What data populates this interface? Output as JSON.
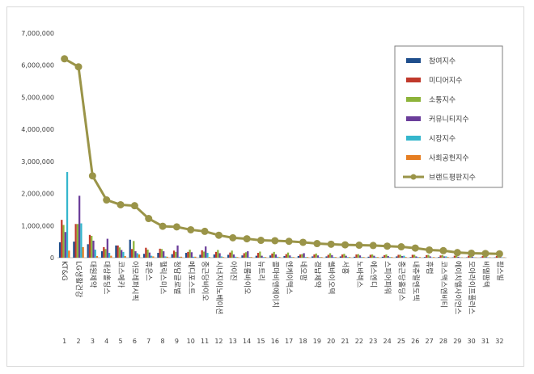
{
  "chart_data": {
    "type": "bar",
    "title": "",
    "xlabel": "",
    "ylabel": "",
    "ylim": [
      0,
      7000000
    ],
    "y_ticks": [
      "0",
      "1,000,000",
      "2,000,000",
      "3,000,000",
      "4,000,000",
      "5,000,000",
      "6,000,000",
      "7,000,000"
    ],
    "grid": false,
    "legend_position": "top-right",
    "x_numbers": [
      "1",
      "2",
      "3",
      "4",
      "5",
      "6",
      "7",
      "8",
      "9",
      "10",
      "11",
      "12",
      "13",
      "14",
      "15",
      "16",
      "17",
      "18",
      "19",
      "20",
      "21",
      "22",
      "23",
      "24",
      "25",
      "26",
      "27",
      "28",
      "29",
      "30",
      "31",
      "32"
    ],
    "categories": [
      "KT&G",
      "LG생활건강",
      "대원제약",
      "대상홀딩스",
      "코스메카",
      "아모레퍼시픽",
      "휴온스",
      "헬릭스미스",
      "청담글로벌",
      "메디포스트",
      "종근당바이오",
      "시너지이노베이션",
      "아이진",
      "프롬바이오",
      "뉴트리",
      "콜마비앤에이치",
      "엔케이맥스",
      "네오팜",
      "경남제약",
      "쎌바이오텍",
      "서흥",
      "노바렉스",
      "에스엔디",
      "스피어파워",
      "종근당홀딩스",
      "내츄럴엔도텍",
      "휴럼",
      "코스맥스엔비티",
      "에이치엘사이언스",
      "모아라이프플러스",
      "비엘팜텍",
      "팜스빌"
    ],
    "series": [
      {
        "name": "참여지수",
        "color": "#1f4e8c",
        "values": [
          480000,
          500000,
          420000,
          200000,
          380000,
          560000,
          120000,
          150000,
          110000,
          150000,
          90000,
          100000,
          90000,
          70000,
          60000,
          70000,
          50000,
          50000,
          40000,
          40000,
          40000,
          30000,
          30000,
          30000,
          40000,
          20000,
          20000,
          20000,
          10000,
          10000,
          10000,
          10000
        ]
      },
      {
        "name": "미디어지수",
        "color": "#c0392b",
        "values": [
          1180000,
          1050000,
          710000,
          330000,
          380000,
          270000,
          310000,
          280000,
          220000,
          180000,
          230000,
          180000,
          160000,
          140000,
          150000,
          130000,
          110000,
          100000,
          100000,
          90000,
          100000,
          100000,
          90000,
          80000,
          90000,
          90000,
          80000,
          70000,
          60000,
          60000,
          50000,
          50000
        ]
      },
      {
        "name": "소통지수",
        "color": "#8db33a",
        "values": [
          1020000,
          1050000,
          680000,
          270000,
          320000,
          520000,
          250000,
          270000,
          180000,
          250000,
          190000,
          240000,
          220000,
          170000,
          190000,
          180000,
          160000,
          110000,
          130000,
          140000,
          120000,
          110000,
          100000,
          100000,
          90000,
          90000,
          90000,
          80000,
          70000,
          60000,
          70000,
          60000
        ]
      },
      {
        "name": "커뮤니티지수",
        "color": "#6a3d9a",
        "values": [
          800000,
          1930000,
          530000,
          590000,
          240000,
          200000,
          160000,
          200000,
          380000,
          170000,
          350000,
          140000,
          100000,
          200000,
          60000,
          100000,
          70000,
          140000,
          70000,
          80000,
          60000,
          70000,
          60000,
          50000,
          50000,
          40000,
          40000,
          40000,
          30000,
          30000,
          20000,
          20000
        ]
      },
      {
        "name": "시장지수",
        "color": "#35b6cc",
        "values": [
          2670000,
          1070000,
          250000,
          150000,
          180000,
          140000,
          60000,
          40000,
          30000,
          30000,
          150000,
          40000,
          30000,
          20000,
          20000,
          30000,
          20000,
          20000,
          20000,
          20000,
          20000,
          20000,
          20000,
          20000,
          60000,
          20000,
          10000,
          40000,
          10000,
          10000,
          10000,
          10000
        ]
      },
      {
        "name": "사회공헌지수",
        "color": "#e67e22",
        "values": [
          220000,
          330000,
          50000,
          60000,
          50000,
          100000,
          40000,
          30000,
          30000,
          30000,
          20000,
          20000,
          20000,
          20000,
          20000,
          20000,
          20000,
          20000,
          20000,
          20000,
          20000,
          20000,
          20000,
          20000,
          20000,
          20000,
          20000,
          20000,
          10000,
          10000,
          10000,
          10000
        ]
      },
      {
        "name": "브랜드평판지수",
        "color": "#9a9448",
        "type": "line",
        "values": [
          6200000,
          5950000,
          2550000,
          1800000,
          1650000,
          1620000,
          1220000,
          980000,
          960000,
          870000,
          820000,
          700000,
          620000,
          590000,
          540000,
          530000,
          510000,
          480000,
          440000,
          420000,
          400000,
          390000,
          380000,
          360000,
          340000,
          300000,
          240000,
          220000,
          160000,
          140000,
          130000,
          120000
        ]
      }
    ]
  }
}
